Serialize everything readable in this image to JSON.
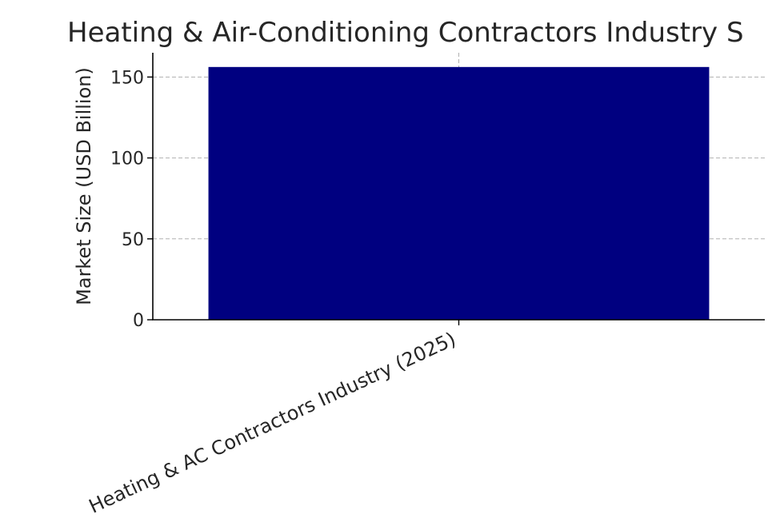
{
  "chart_data": {
    "type": "bar",
    "title": "Heating & Air-Conditioning Contractors Industry S",
    "xlabel": "",
    "ylabel": "Market Size (USD Billion)",
    "categories": [
      "Heating & AC Contractors Industry (2025)"
    ],
    "values": [
      156.2
    ],
    "ylim": [
      0,
      165
    ],
    "yticks": [
      0,
      50,
      100,
      150
    ],
    "grid": true,
    "colors": {
      "bar": "#000080",
      "grid": "#b0b0b0",
      "axis": "#000000",
      "text": "#262626"
    }
  }
}
